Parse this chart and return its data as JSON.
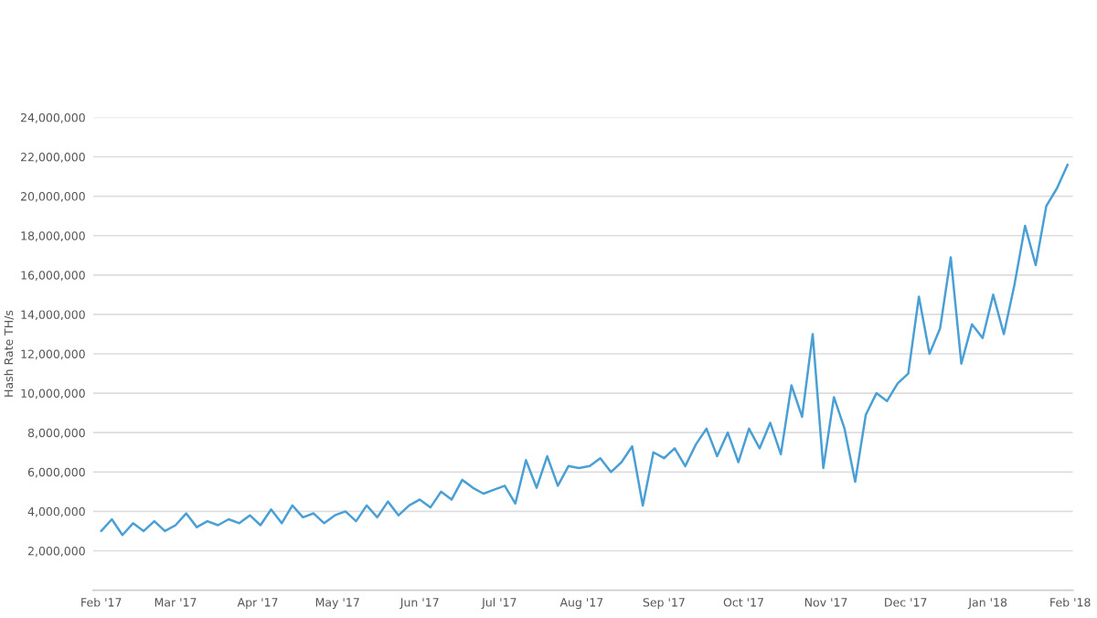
{
  "chart_data": {
    "type": "line",
    "ylabel": "Hash Rate TH/s",
    "x": [
      "2017-02-01",
      "2017-02-05",
      "2017-02-09",
      "2017-02-13",
      "2017-02-17",
      "2017-02-21",
      "2017-02-25",
      "2017-03-01",
      "2017-03-05",
      "2017-03-09",
      "2017-03-13",
      "2017-03-17",
      "2017-03-21",
      "2017-03-25",
      "2017-03-29",
      "2017-04-02",
      "2017-04-06",
      "2017-04-10",
      "2017-04-14",
      "2017-04-18",
      "2017-04-22",
      "2017-04-26",
      "2017-04-30",
      "2017-05-04",
      "2017-05-08",
      "2017-05-12",
      "2017-05-16",
      "2017-05-20",
      "2017-05-24",
      "2017-05-28",
      "2017-06-01",
      "2017-06-05",
      "2017-06-09",
      "2017-06-13",
      "2017-06-17",
      "2017-06-21",
      "2017-06-25",
      "2017-06-29",
      "2017-07-03",
      "2017-07-07",
      "2017-07-11",
      "2017-07-15",
      "2017-07-19",
      "2017-07-23",
      "2017-07-27",
      "2017-07-31",
      "2017-08-04",
      "2017-08-08",
      "2017-08-12",
      "2017-08-16",
      "2017-08-20",
      "2017-08-24",
      "2017-08-28",
      "2017-09-01",
      "2017-09-05",
      "2017-09-09",
      "2017-09-13",
      "2017-09-17",
      "2017-09-21",
      "2017-09-25",
      "2017-09-29",
      "2017-10-03",
      "2017-10-07",
      "2017-10-11",
      "2017-10-15",
      "2017-10-19",
      "2017-10-23",
      "2017-10-27",
      "2017-10-31",
      "2017-11-04",
      "2017-11-08",
      "2017-11-12",
      "2017-11-16",
      "2017-11-20",
      "2017-11-24",
      "2017-11-28",
      "2017-12-02",
      "2017-12-06",
      "2017-12-10",
      "2017-12-14",
      "2017-12-18",
      "2017-12-22",
      "2017-12-26",
      "2017-12-30",
      "2018-01-03",
      "2018-01-07",
      "2018-01-11",
      "2018-01-15",
      "2018-01-19",
      "2018-01-23",
      "2018-01-27",
      "2018-01-31"
    ],
    "series": [
      {
        "color": "#4a9fd5",
        "values": [
          3000000,
          3600000,
          2800000,
          3400000,
          3000000,
          3500000,
          3000000,
          3300000,
          3900000,
          3200000,
          3500000,
          3300000,
          3600000,
          3400000,
          3800000,
          3300000,
          4100000,
          3400000,
          4300000,
          3700000,
          3900000,
          3400000,
          3800000,
          4000000,
          3500000,
          4300000,
          3700000,
          4500000,
          3800000,
          4300000,
          4600000,
          4200000,
          5000000,
          4600000,
          5600000,
          5200000,
          4900000,
          5100000,
          5300000,
          4400000,
          6600000,
          5200000,
          6800000,
          5300000,
          6300000,
          6200000,
          6300000,
          6700000,
          6000000,
          6500000,
          7300000,
          4300000,
          7000000,
          6700000,
          7200000,
          6300000,
          7400000,
          8200000,
          6800000,
          8000000,
          6500000,
          8200000,
          7200000,
          8500000,
          6900000,
          10400000,
          8800000,
          13000000,
          6200000,
          9800000,
          8200000,
          5500000,
          8900000,
          10000000,
          9600000,
          10500000,
          11000000,
          14900000,
          12000000,
          13300000,
          16900000,
          11500000,
          13500000,
          12800000,
          15000000,
          13000000,
          15500000,
          18500000,
          16500000,
          19500000,
          20400000,
          21600000
        ]
      }
    ],
    "xlim": [
      "2017-01-29",
      "2018-02-02"
    ],
    "xticks": [
      {
        "value": "2017-02-01",
        "label": "Feb '17"
      },
      {
        "value": "2017-03-01",
        "label": "Mar '17"
      },
      {
        "value": "2017-04-01",
        "label": "Apr '17"
      },
      {
        "value": "2017-05-01",
        "label": "May '17"
      },
      {
        "value": "2017-06-01",
        "label": "Jun '17"
      },
      {
        "value": "2017-07-01",
        "label": "Jul '17"
      },
      {
        "value": "2017-08-01",
        "label": "Aug '17"
      },
      {
        "value": "2017-09-01",
        "label": "Sep '17"
      },
      {
        "value": "2017-10-01",
        "label": "Oct '17"
      },
      {
        "value": "2017-11-01",
        "label": "Nov '17"
      },
      {
        "value": "2017-12-01",
        "label": "Dec '17"
      },
      {
        "value": "2018-01-01",
        "label": "Jan '18"
      },
      {
        "value": "2018-02-01",
        "label": "Feb '18"
      }
    ],
    "ylim": [
      0,
      24000000
    ],
    "yticks": [
      {
        "value": 2000000,
        "label": "2,000,000"
      },
      {
        "value": 4000000,
        "label": "4,000,000"
      },
      {
        "value": 6000000,
        "label": "6,000,000"
      },
      {
        "value": 8000000,
        "label": "8,000,000"
      },
      {
        "value": 10000000,
        "label": "10,000,000"
      },
      {
        "value": 12000000,
        "label": "12,000,000"
      },
      {
        "value": 14000000,
        "label": "14,000,000"
      },
      {
        "value": 16000000,
        "label": "16,000,000"
      },
      {
        "value": 18000000,
        "label": "18,000,000"
      },
      {
        "value": 20000000,
        "label": "20,000,000"
      },
      {
        "value": 22000000,
        "label": "22,000,000"
      },
      {
        "value": 24000000,
        "label": "24,000,000"
      }
    ],
    "grid": "y",
    "legend": false,
    "marker": "none",
    "line_style": "solid"
  }
}
